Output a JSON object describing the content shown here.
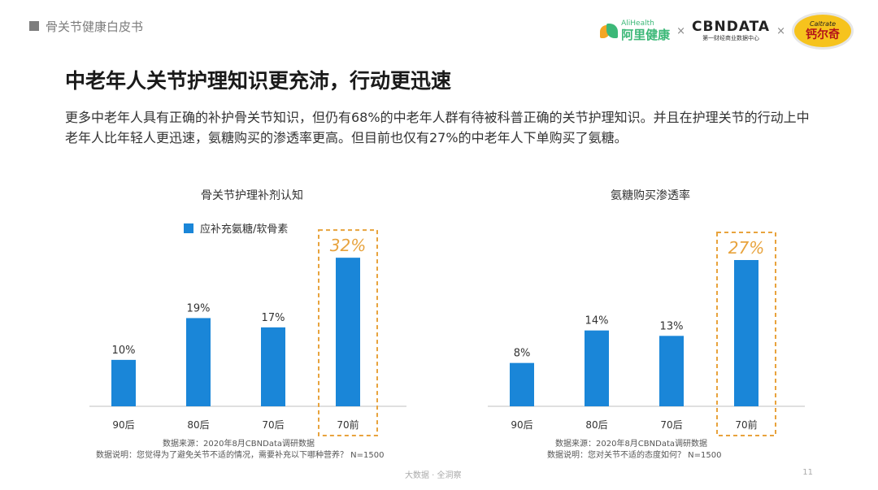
{
  "header": {
    "title": "骨关节健康白皮书"
  },
  "logos": {
    "alihealth_en": "AliHealth",
    "alihealth_cn": "阿里健康",
    "separator": "×",
    "cbndata_main": "CBNDATA",
    "cbndata_sub": "第一财经商业数据中心",
    "caltrate_en": "Caltrate",
    "caltrate_cn": "钙尔奇"
  },
  "slide": {
    "title": "中老年人关节护理知识更充沛，行动更迅速",
    "description": "更多中老年人具有正确的补护骨关节知识，但仍有68%的中老年人群有待被科普正确的关节护理知识。并且在护理关节的行动上中老年人比年轻人更迅速，氨糖购买的渗透率更高。但目前也仅有27%的中老年人下单购买了氨糖。"
  },
  "colors": {
    "bar": "#1a86d8",
    "highlight": "#e8a33d",
    "axis": "#bfbfbf"
  },
  "chart_data": [
    {
      "type": "bar",
      "title": "骨关节护理补剂认知",
      "legend": "应补充氨糖/软骨素",
      "categories": [
        "90后",
        "80后",
        "70后",
        "70前"
      ],
      "values": [
        10,
        19,
        17,
        32
      ],
      "labels": [
        "10%",
        "19%",
        "17%",
        "32%"
      ],
      "highlight_index": 3,
      "ylim": [
        0,
        35
      ],
      "source": "数据来源：2020年8月CBNData调研数据",
      "note": "数据说明：您觉得为了避免关节不适的情况，需要补充以下哪种营养？ N=1500"
    },
    {
      "type": "bar",
      "title": "氨糖购买渗透率",
      "legend": "",
      "categories": [
        "90后",
        "80后",
        "70后",
        "70前"
      ],
      "values": [
        8,
        14,
        13,
        27
      ],
      "labels": [
        "8%",
        "14%",
        "13%",
        "27%"
      ],
      "highlight_index": 3,
      "ylim": [
        0,
        30
      ],
      "source": "数据来源：2020年8月CBNData调研数据",
      "note": "数据说明：您对关节不适的态度如何？ N=1500"
    }
  ],
  "footer": {
    "center": "大数据 · 全洞察",
    "page": "11"
  }
}
